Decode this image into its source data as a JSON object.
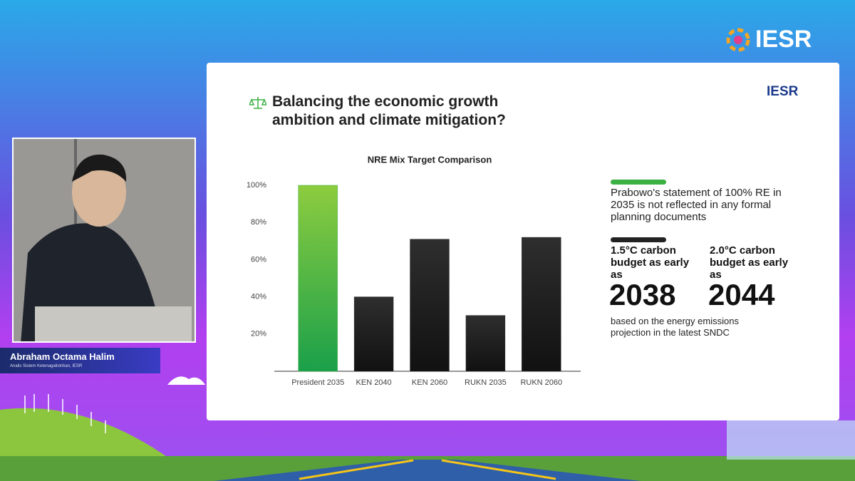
{
  "header": {
    "logo": "IESR"
  },
  "speaker": {
    "name": "Abraham Octama Halim",
    "role": "Analis Sistem Ketenagalistrikan, IESR"
  },
  "slide": {
    "logo": "IESR",
    "title": "Balancing the economic growth ambition and climate mitigation?",
    "statement": "Prabowo's statement of 100% RE in 2035 is not reflected in any formal planning documents",
    "budgets": [
      {
        "label": "1.5°C carbon budget as early as",
        "year": "2038"
      },
      {
        "label": "2.0°C carbon budget as early as",
        "year": "2044"
      }
    ],
    "note": "based on the energy emissions projection in the latest SNDC"
  },
  "chart_data": {
    "type": "bar",
    "title": "NRE Mix Target Comparison",
    "categories": [
      "President 2035",
      "KEN 2040",
      "KEN 2060",
      "RUKN 2035",
      "RUKN 2060"
    ],
    "values": [
      100,
      40,
      71,
      30,
      72
    ],
    "colors": [
      "#3cb043",
      "#262626",
      "#262626",
      "#262626",
      "#262626"
    ],
    "ylim": [
      0,
      100
    ],
    "yticks": [
      {
        "value": 20,
        "label": "20%"
      },
      {
        "value": 40,
        "label": "40%"
      },
      {
        "value": 60,
        "label": "60%"
      },
      {
        "value": 80,
        "label": "80%"
      },
      {
        "value": 100,
        "label": "100%"
      }
    ],
    "grid": false
  }
}
